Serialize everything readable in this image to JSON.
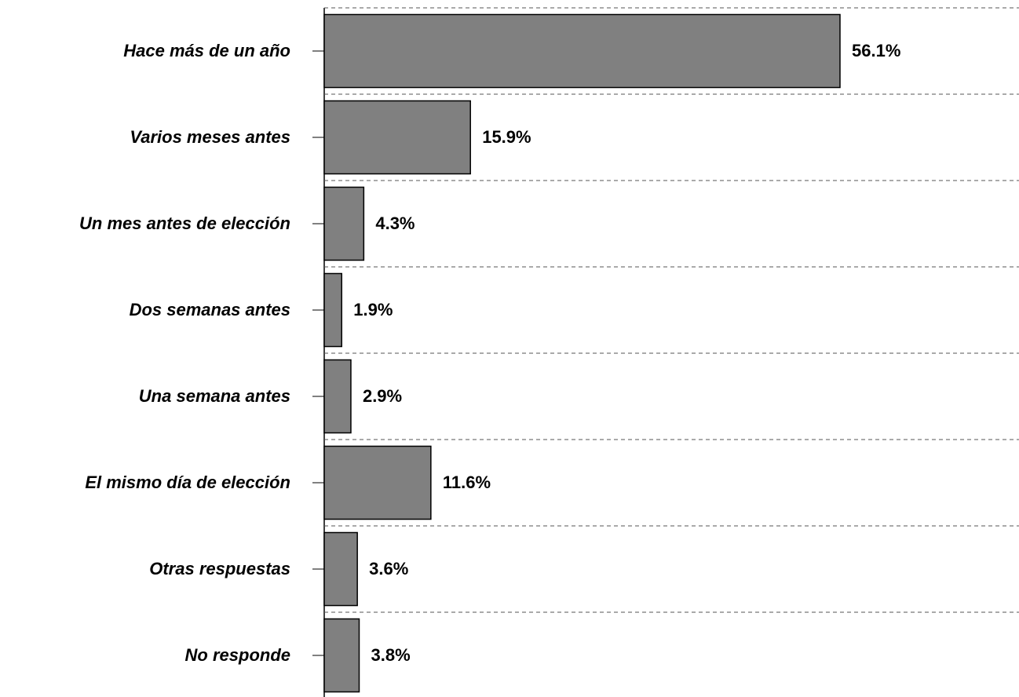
{
  "chart_data": {
    "type": "barh",
    "categories": [
      "Hace más de un año",
      "Varios meses antes",
      "Un mes antes de elección",
      "Dos semanas antes",
      "Una semana antes",
      "El mismo día de elección",
      "Otras respuestas",
      "No responde"
    ],
    "values": [
      56.1,
      15.9,
      4.3,
      1.9,
      2.9,
      11.6,
      3.6,
      3.8
    ],
    "value_labels": [
      "56.1%",
      "15.9%",
      "4.3%",
      "1.9%",
      "2.9%",
      "11.6%",
      "3.6%",
      "3.8%"
    ],
    "color": "#808080",
    "grid": true
  }
}
